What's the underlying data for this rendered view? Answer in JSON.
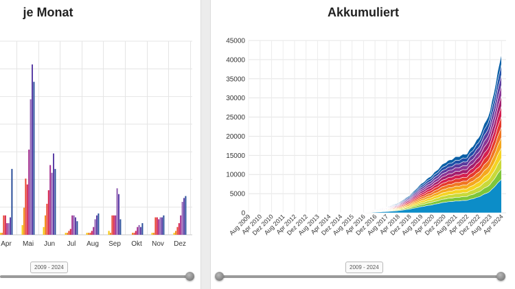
{
  "left_panel": {
    "title": "je Monat",
    "range_label": "2009 - 2024"
  },
  "right_panel": {
    "title": "Akkumuliert",
    "range_label": "2009 - 2024"
  },
  "colors": {
    "series": [
      "#f5c400",
      "#f28e1c",
      "#e8432e",
      "#d4204c",
      "#a22c8e",
      "#8e5bb0",
      "#5b3fa6",
      "#2a4e9a"
    ],
    "stack": [
      "#0c8dc8",
      "#7ec63a",
      "#c9d93a",
      "#f5d323",
      "#f5a81e",
      "#f07622",
      "#e53b2c",
      "#d41f50",
      "#a21e6e",
      "#8a3595",
      "#5a3b9e",
      "#1f4fa8",
      "#0a5fa6"
    ]
  },
  "chart_data": [
    {
      "type": "bar",
      "title": "je Monat",
      "categories": [
        "Apr",
        "Mai",
        "Jun",
        "Jul",
        "Aug",
        "Sep",
        "Okt",
        "Nov",
        "Dez"
      ],
      "series_count": 8,
      "series_values": [
        [
          1,
          5,
          4,
          1,
          1,
          2,
          0,
          1,
          1
        ],
        [
          1,
          14,
          10,
          1,
          1,
          1,
          1,
          1,
          2
        ],
        [
          10,
          29,
          16,
          2,
          1,
          10,
          1,
          9,
          4
        ],
        [
          10,
          26,
          23,
          3,
          2,
          10,
          2,
          9,
          6
        ],
        [
          6,
          44,
          36,
          10,
          4,
          10,
          4,
          8,
          10
        ],
        [
          6,
          70,
          32,
          10,
          8,
          24,
          5,
          9,
          17
        ],
        [
          9,
          88,
          42,
          9,
          10,
          21,
          4,
          9,
          19
        ],
        [
          34,
          79,
          34,
          7,
          11,
          8,
          6,
          10,
          20
        ]
      ],
      "ylim": [
        0,
        100
      ]
    },
    {
      "type": "area",
      "title": "Akkumuliert",
      "x": [
        "Aug 2009",
        "Apr 2010",
        "Dez 2010",
        "Aug 2011",
        "Apr 2012",
        "Dez 2012",
        "Aug 2013",
        "Apr 2014",
        "Dez 2014",
        "Aug 2015",
        "Apr 2016",
        "Dez 2016",
        "Aug 2017",
        "Apr 2018",
        "Dez 2018",
        "Aug 2019",
        "Apr 2020",
        "Dez 2020",
        "Aug 2021",
        "Apr 2022",
        "Dez 2022",
        "Aug 2023",
        "Apr 2024"
      ],
      "totals": [
        0,
        0,
        0,
        0,
        0,
        0,
        0,
        0,
        0,
        0,
        0,
        800,
        1500,
        2500,
        4500,
        7500,
        10000,
        13000,
        14500,
        15500,
        19500,
        26500,
        41500
      ],
      "series_count": 13,
      "ylim": [
        0,
        45000
      ],
      "y_ticks": [
        0,
        5000,
        10000,
        15000,
        20000,
        25000,
        30000,
        35000,
        40000,
        45000
      ],
      "grid": true
    }
  ]
}
